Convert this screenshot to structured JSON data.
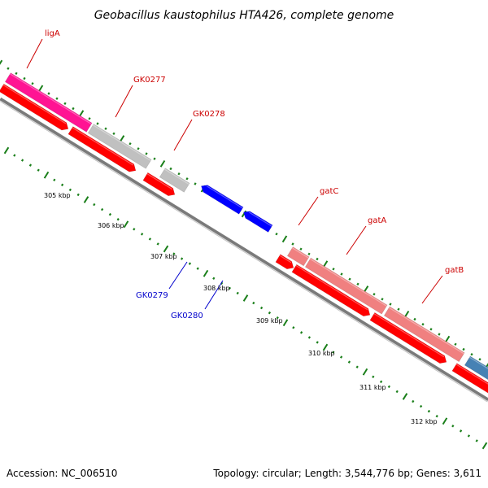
{
  "title": "Geobacillus kaustophilus HTA426, complete genome",
  "footer": {
    "accession": "Accession: NC_006510",
    "topology": "Topology: circular; Length: 3,544,776 bp; Genes: 3,611"
  },
  "colors": {
    "forward_label": "#cc0000",
    "reverse_label": "#0000cc",
    "cds": "#ff0000",
    "reverse_cds": "#0000ff",
    "gene_grey": "#c0c0c0",
    "gene_pink": "#f08080",
    "gene_magenta": "#ff1493",
    "gene_steel": "#4682b4",
    "tick_green": "#1a7f1a",
    "backbone": "#7a7a7a"
  },
  "gene_labels": [
    {
      "name": "ligA",
      "strand": "forward"
    },
    {
      "name": "GK0277",
      "strand": "forward"
    },
    {
      "name": "GK0278",
      "strand": "forward"
    },
    {
      "name": "gatC",
      "strand": "forward"
    },
    {
      "name": "gatA",
      "strand": "forward"
    },
    {
      "name": "gatB",
      "strand": "forward"
    },
    {
      "name": "GK0279",
      "strand": "reverse"
    },
    {
      "name": "GK0280",
      "strand": "reverse"
    }
  ],
  "tick_labels": [
    "305 kbp",
    "306 kbp",
    "307 kbp",
    "308 kbp",
    "309 kbp",
    "310 kbp",
    "311 kbp",
    "312 kbp"
  ]
}
